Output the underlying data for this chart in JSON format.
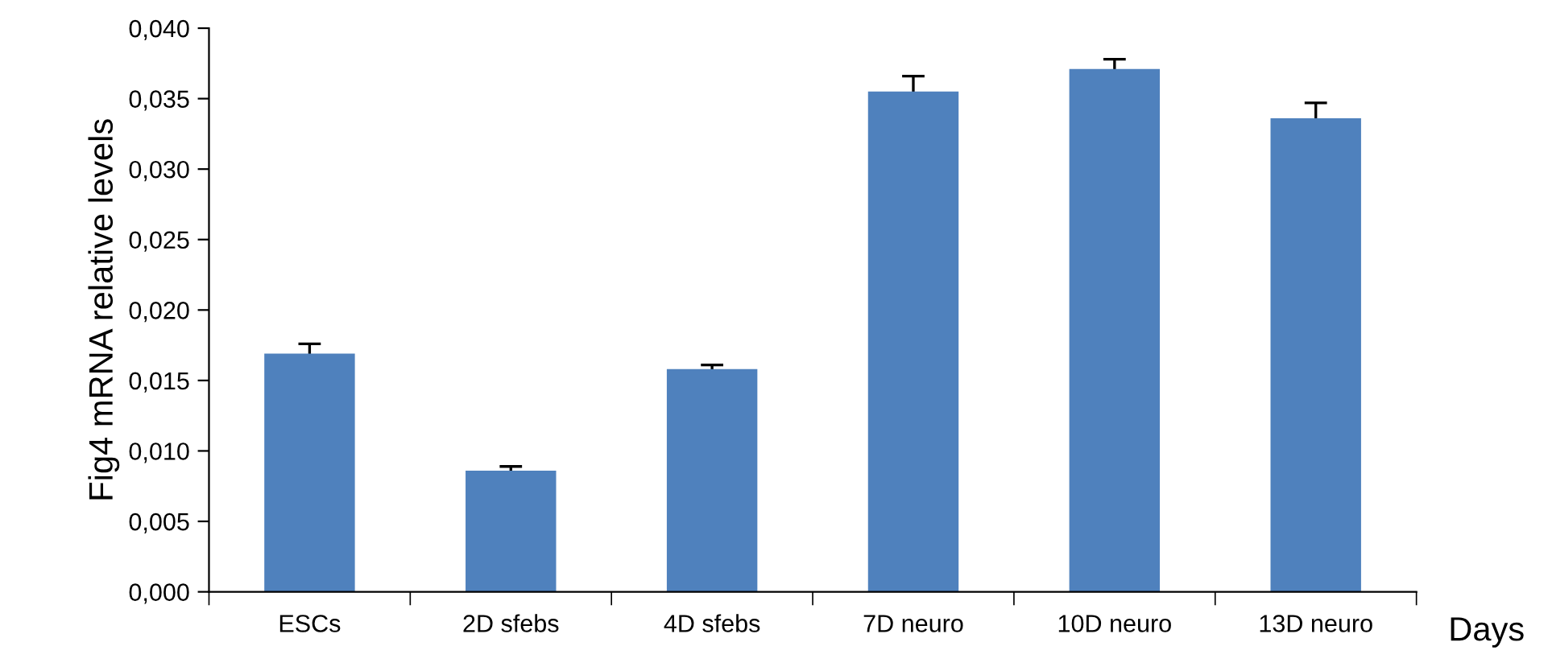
{
  "chart_data": {
    "type": "bar",
    "xlabel": "Days",
    "ylabel": "Fig4 mRNA relative levels",
    "categories": [
      "ESCs",
      "2D sfebs",
      "4D sfebs",
      "7D neuro",
      "10D neuro",
      "13D neuro"
    ],
    "series": [
      {
        "color": "#4f81bd",
        "values": [
          0.0169,
          0.0086,
          0.0158,
          0.0355,
          0.0371,
          0.0336
        ],
        "errors": [
          0.0007,
          0.0003,
          0.0003,
          0.0011,
          0.0007,
          0.0011
        ]
      }
    ],
    "ylim": [
      0,
      0.04
    ],
    "yticks": [
      {
        "value": 0,
        "label": "0,000"
      },
      {
        "value": 0.005,
        "label": "0,005"
      },
      {
        "value": 0.01,
        "label": "0,010"
      },
      {
        "value": 0.015,
        "label": "0,015"
      },
      {
        "value": 0.02,
        "label": "0,020"
      },
      {
        "value": 0.025,
        "label": "0,025"
      },
      {
        "value": 0.03,
        "label": "0,030"
      },
      {
        "value": 0.035,
        "label": "0,035"
      },
      {
        "value": 0.04,
        "label": "0,040"
      }
    ],
    "grid": false,
    "legend": false
  }
}
